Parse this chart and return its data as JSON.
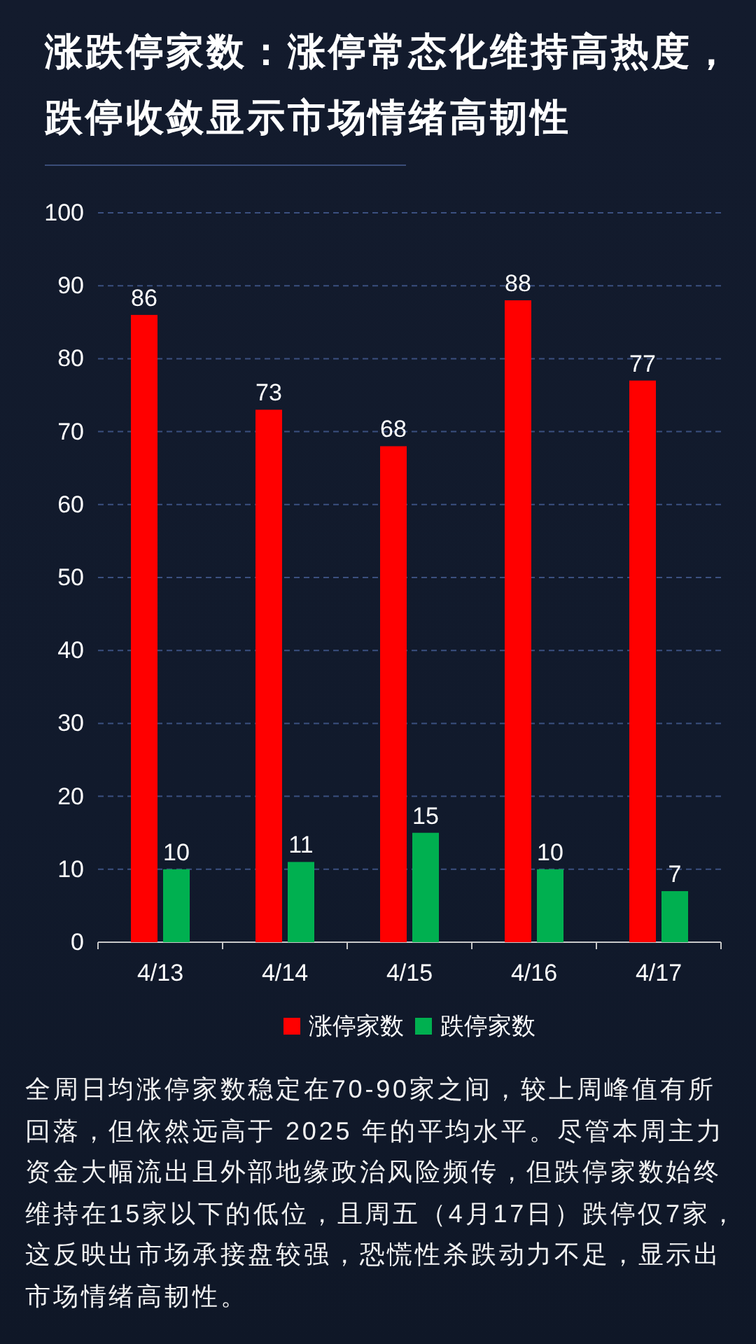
{
  "chart_data": {
    "type": "bar",
    "title": "涨跌停家数：涨停常态化维持高热度，跌停收敛显示市场情绪高韧性",
    "categories": [
      "4/13",
      "4/14",
      "4/15",
      "4/16",
      "4/17"
    ],
    "series": [
      {
        "name": "涨停家数",
        "color": "#ff0000",
        "values": [
          86,
          73,
          68,
          88,
          77
        ]
      },
      {
        "name": "跌停家数",
        "color": "#00b050",
        "values": [
          10,
          11,
          15,
          10,
          7
        ]
      }
    ],
    "ylim": [
      0,
      100
    ],
    "yticks": [
      0,
      10,
      20,
      30,
      40,
      50,
      60,
      70,
      80,
      90,
      100
    ],
    "grid": "y",
    "legend": "bottom",
    "data_labels": true,
    "annotations": [
      "全周日均涨停家数稳定在70-90家之间，较上周峰值有所回落，但依然远高于 2025 年的平均水平。尽管本周主力资金大幅流出且外部地缘政治风险频传，但跌停家数始终维持在15家以下的低位，且周五（4月17日）跌停仅7家，这反映出市场承接盘较强，恐慌性杀跌动力不足，显示出市场情绪高韧性。"
    ]
  }
}
